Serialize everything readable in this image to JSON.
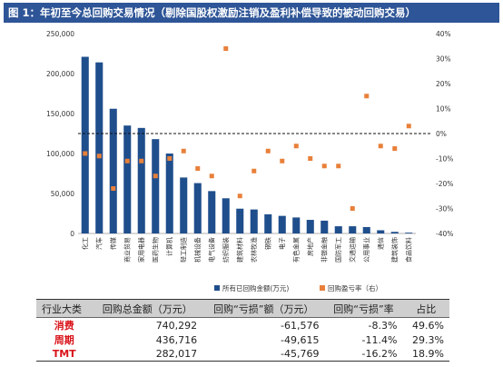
{
  "title": "图 1：年初至今总回购交易情况（剔除国股权激励注销及盈利补偿导致的被动回购交易）",
  "chart_data": {
    "type": "bar",
    "categories": [
      "化工",
      "汽车",
      "传媒",
      "商业贸易",
      "家用电器",
      "医药生物",
      "计算机",
      "轻工制造",
      "机械设备",
      "电气设备",
      "纺织服装",
      "建筑材料",
      "农林牧渔",
      "钢铁",
      "电子",
      "有色金属",
      "房地产",
      "非银金融",
      "国防军工",
      "交通运输",
      "公用事业",
      "通信",
      "建筑装饰",
      "食品饮料"
    ],
    "series": [
      {
        "name": "所有已回购金额(万元)",
        "axis": "left",
        "type": "bar",
        "color": "#1f4e8c",
        "values": [
          221000,
          214000,
          156000,
          135000,
          132000,
          118000,
          100000,
          70000,
          63000,
          53000,
          44000,
          31000,
          30000,
          24000,
          22000,
          20000,
          17000,
          16000,
          9000,
          9000,
          8000,
          4000,
          2000,
          1000
        ]
      },
      {
        "name": "回购盈亏率（右）",
        "axis": "right",
        "type": "scatter",
        "color": "#e8803a",
        "values": [
          -8,
          -9,
          -22,
          -11,
          -11,
          -17,
          -10,
          -7,
          -14,
          -17,
          34,
          -25,
          -15,
          -7,
          -11,
          -5,
          -10,
          -13,
          -13,
          -30,
          15,
          -5,
          -6,
          3
        ]
      }
    ],
    "ylim_left": [
      0,
      250000
    ],
    "yticks_left": [
      "0",
      "50,000",
      "100,000",
      "150,000",
      "200,000",
      "250,000"
    ],
    "ylim_right": [
      -40,
      40
    ],
    "yticks_right": [
      "-40%",
      "-30%",
      "-20%",
      "-10%",
      "0%",
      "10%",
      "20%",
      "30%",
      "40%"
    ],
    "reference_line_right": 0,
    "legend_placement": "bottom"
  },
  "table": {
    "headers": [
      "行业大类",
      "回购总金额（万元）",
      "回购“亏损”额（万元）",
      "回购“亏损”率",
      "占比"
    ],
    "rows": [
      [
        "消费",
        "740,292",
        "-61,576",
        "-8.3%",
        "49.6%"
      ],
      [
        "周期",
        "436,716",
        "-49,615",
        "-11.4%",
        "29.3%"
      ],
      [
        "TMT",
        "282,017",
        "-45,769",
        "-16.2%",
        "18.9%"
      ]
    ]
  }
}
